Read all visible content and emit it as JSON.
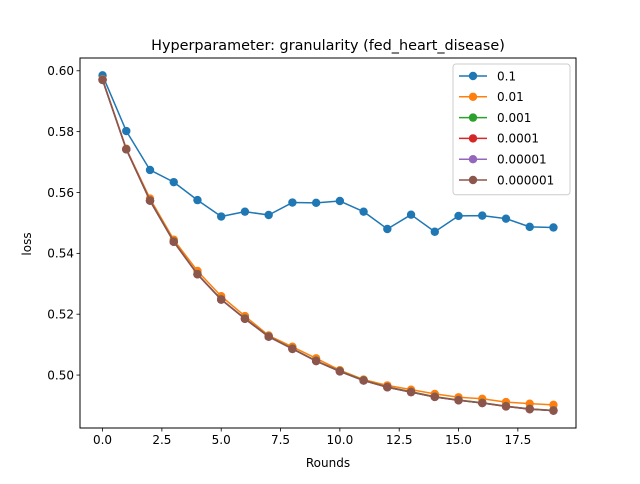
{
  "chart_data": {
    "type": "line",
    "title": "Hyperparameter: granularity (fed_heart_disease)",
    "xlabel": "Rounds",
    "ylabel": "loss",
    "xlim": [
      -0.95,
      19.95
    ],
    "ylim": [
      0.4826,
      0.6042
    ],
    "xticks": [
      0.0,
      2.5,
      5.0,
      7.5,
      10.0,
      12.5,
      15.0,
      17.5
    ],
    "xtick_labels": [
      "0.0",
      "2.5",
      "5.0",
      "7.5",
      "10.0",
      "12.5",
      "15.0",
      "17.5"
    ],
    "yticks": [
      0.5,
      0.52,
      0.54,
      0.56,
      0.58,
      0.6
    ],
    "ytick_labels": [
      "0.50",
      "0.52",
      "0.54",
      "0.56",
      "0.58",
      "0.60"
    ],
    "grid": false,
    "legend_position": "top-right",
    "x": [
      0,
      1,
      2,
      3,
      4,
      5,
      6,
      7,
      8,
      9,
      10,
      11,
      12,
      13,
      14,
      15,
      16,
      17,
      18,
      19
    ],
    "series": [
      {
        "name": "0.1",
        "color": "#1f77b4",
        "values": [
          0.5985,
          0.5802,
          0.5674,
          0.5634,
          0.5575,
          0.5521,
          0.5537,
          0.5526,
          0.5567,
          0.5566,
          0.5572,
          0.5537,
          0.548,
          0.5527,
          0.5471,
          0.5523,
          0.5524,
          0.5514,
          0.5487,
          0.5485
        ]
      },
      {
        "name": "0.01",
        "color": "#ff7f0e",
        "values": [
          0.5972,
          0.5744,
          0.558,
          0.5445,
          0.5342,
          0.5259,
          0.5194,
          0.513,
          0.5093,
          0.5055,
          0.5016,
          0.4985,
          0.4966,
          0.4952,
          0.4938,
          0.4927,
          0.4922,
          0.4911,
          0.4906,
          0.4902
        ]
      },
      {
        "name": "0.001",
        "color": "#2ca02c",
        "values": [
          0.597,
          0.5742,
          0.5574,
          0.5439,
          0.5332,
          0.5249,
          0.5186,
          0.5127,
          0.5087,
          0.5047,
          0.5013,
          0.4983,
          0.4961,
          0.4945,
          0.4929,
          0.4918,
          0.4909,
          0.4898,
          0.4889,
          0.4884
        ]
      },
      {
        "name": "0.0001",
        "color": "#d62728",
        "values": [
          0.597,
          0.5742,
          0.5573,
          0.5438,
          0.5331,
          0.5248,
          0.5185,
          0.5126,
          0.5086,
          0.5046,
          0.5012,
          0.4982,
          0.496,
          0.4944,
          0.4928,
          0.4917,
          0.4908,
          0.4897,
          0.4888,
          0.4883
        ]
      },
      {
        "name": "0.00001",
        "color": "#9467bd",
        "values": [
          0.597,
          0.5742,
          0.5573,
          0.5438,
          0.5331,
          0.5248,
          0.5185,
          0.5126,
          0.5086,
          0.5046,
          0.5012,
          0.4982,
          0.496,
          0.4944,
          0.4928,
          0.4917,
          0.4908,
          0.4897,
          0.4888,
          0.4883
        ]
      },
      {
        "name": "0.000001",
        "color": "#8c564b",
        "values": [
          0.597,
          0.5742,
          0.5573,
          0.5438,
          0.5331,
          0.5248,
          0.5185,
          0.5126,
          0.5086,
          0.5046,
          0.5012,
          0.4982,
          0.496,
          0.4944,
          0.4928,
          0.4917,
          0.4908,
          0.4897,
          0.4888,
          0.4883
        ]
      }
    ]
  }
}
